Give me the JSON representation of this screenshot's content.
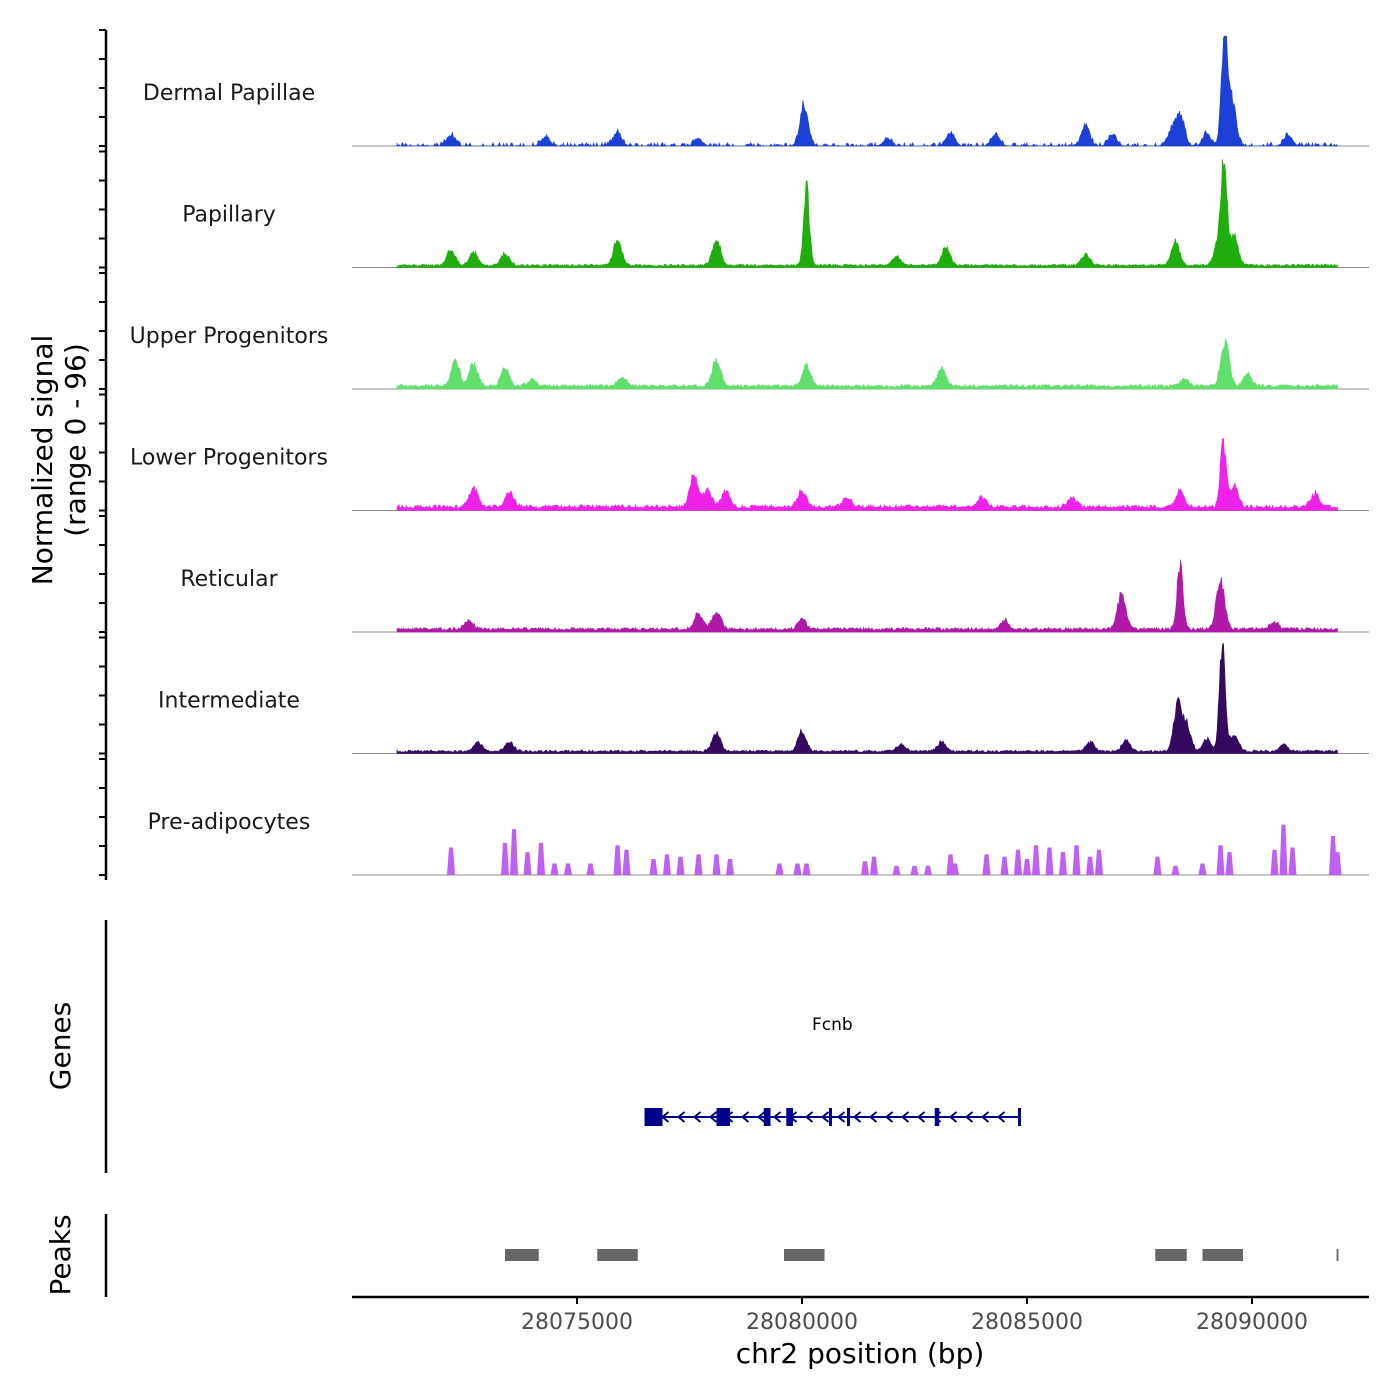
{
  "chart_data": {
    "type": "area",
    "title": "",
    "xlabel": "chr2 position (bp)",
    "ylabel_line1": "Normalized signal",
    "ylabel_line2": "(range 0 - 96)",
    "ylim": [
      0,
      96
    ],
    "xlim": [
      28070000,
      28092600
    ],
    "x_ticks": [
      28075000,
      28080000,
      28085000,
      28090000
    ],
    "x_tick_labels": [
      "28075000",
      "28080000",
      "28085000",
      "28090000"
    ],
    "signal_range": [
      28071000,
      28091900
    ],
    "tracks": [
      {
        "name": "Dermal Papillae",
        "color": "#1c3fd8",
        "noise": 2,
        "style": "sparse",
        "peaks": [
          [
            28072200,
            10
          ],
          [
            28074300,
            8
          ],
          [
            28075900,
            12
          ],
          [
            28077700,
            6
          ],
          [
            28080050,
            35
          ],
          [
            28081900,
            6
          ],
          [
            28083300,
            12
          ],
          [
            28084300,
            10
          ],
          [
            28086300,
            18
          ],
          [
            28086900,
            10
          ],
          [
            28088200,
            12
          ],
          [
            28088400,
            28
          ],
          [
            28089000,
            10
          ],
          [
            28089380,
            96
          ],
          [
            28089550,
            40
          ],
          [
            28090800,
            10
          ]
        ]
      },
      {
        "name": "Papillary",
        "color": "#1fae0e",
        "noise": 3,
        "style": "dense",
        "peaks": [
          [
            28072200,
            14
          ],
          [
            28072700,
            12
          ],
          [
            28073400,
            10
          ],
          [
            28075900,
            22
          ],
          [
            28078100,
            22
          ],
          [
            28080100,
            66
          ],
          [
            28082100,
            8
          ],
          [
            28083200,
            16
          ],
          [
            28086300,
            10
          ],
          [
            28088300,
            20
          ],
          [
            28089250,
            20
          ],
          [
            28089380,
            88
          ],
          [
            28089600,
            25
          ]
        ]
      },
      {
        "name": "Upper Progenitors",
        "color": "#5ee06a",
        "noise": 4,
        "style": "dense",
        "peaks": [
          [
            28072300,
            22
          ],
          [
            28072700,
            20
          ],
          [
            28073400,
            15
          ],
          [
            28074000,
            6
          ],
          [
            28076000,
            8
          ],
          [
            28078100,
            24
          ],
          [
            28080100,
            18
          ],
          [
            28083100,
            16
          ],
          [
            28088500,
            6
          ],
          [
            28089400,
            38
          ],
          [
            28089900,
            10
          ]
        ]
      },
      {
        "name": "Lower Progenitors",
        "color": "#ee22e8",
        "noise": 5,
        "style": "dense",
        "peaks": [
          [
            28072700,
            18
          ],
          [
            28073500,
            14
          ],
          [
            28077600,
            28
          ],
          [
            28077900,
            15
          ],
          [
            28078300,
            14
          ],
          [
            28080000,
            14
          ],
          [
            28081000,
            8
          ],
          [
            28084000,
            8
          ],
          [
            28086000,
            8
          ],
          [
            28088400,
            14
          ],
          [
            28089360,
            54
          ],
          [
            28089600,
            18
          ],
          [
            28091400,
            12
          ]
        ]
      },
      {
        "name": "Reticular",
        "color": "#b018a8",
        "noise": 4,
        "style": "dense",
        "peaks": [
          [
            28072600,
            8
          ],
          [
            28077700,
            14
          ],
          [
            28078100,
            16
          ],
          [
            28080000,
            8
          ],
          [
            28084500,
            8
          ],
          [
            28087100,
            30
          ],
          [
            28088400,
            58
          ],
          [
            28089300,
            40
          ],
          [
            28090500,
            6
          ]
        ]
      },
      {
        "name": "Intermediate",
        "color": "#330a5e",
        "noise": 3,
        "style": "dense",
        "peaks": [
          [
            28072800,
            8
          ],
          [
            28073500,
            8
          ],
          [
            28078100,
            16
          ],
          [
            28080000,
            18
          ],
          [
            28082200,
            6
          ],
          [
            28083100,
            8
          ],
          [
            28086400,
            8
          ],
          [
            28087200,
            10
          ],
          [
            28088350,
            40
          ],
          [
            28088550,
            22
          ],
          [
            28089000,
            10
          ],
          [
            28089340,
            94
          ],
          [
            28089600,
            15
          ],
          [
            28090700,
            6
          ]
        ]
      },
      {
        "name": "Pre-adipocytes",
        "color": "#c060f2",
        "noise": 0,
        "style": "spiky",
        "peaks": []
      }
    ],
    "genes": [
      {
        "name": "Fcnb",
        "strand": "-",
        "start": 28076500,
        "end": 28084850,
        "exons": [
          [
            28076500,
            28076900
          ],
          [
            28078100,
            28078400
          ],
          [
            28079150,
            28079300
          ],
          [
            28079650,
            28079800
          ],
          [
            28080600,
            28080650
          ],
          [
            28081000,
            28081050
          ],
          [
            28082950,
            28083050
          ],
          [
            28084800,
            28084850
          ]
        ]
      }
    ],
    "peaks": [
      [
        28073400,
        28074150
      ],
      [
        28075450,
        28076350
      ],
      [
        28079600,
        28080500
      ],
      [
        28087850,
        28088550
      ],
      [
        28088900,
        28089800
      ],
      [
        28091880,
        28091920
      ]
    ],
    "panel_titles": {
      "genes": "Genes",
      "peaks": "Peaks"
    }
  }
}
